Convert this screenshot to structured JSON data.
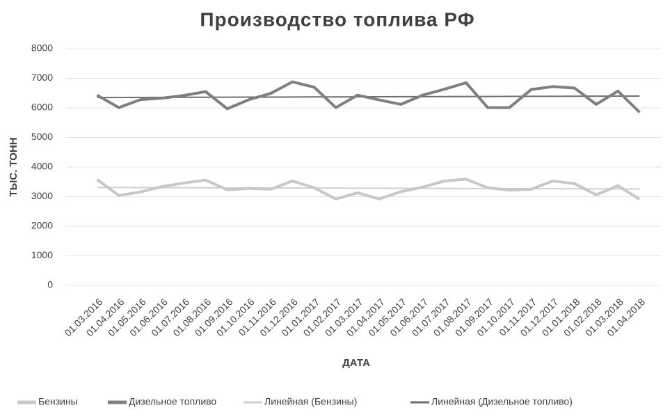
{
  "chart_data": {
    "type": "line",
    "title": "Производство топлива РФ",
    "x_label": "ДАТА",
    "y_label": "ТЫС. ТОНН",
    "categories": [
      "01.03.2016",
      "01.04.2016",
      "01.05.2016",
      "01.06.2016",
      "01.07.2016",
      "01.08.2016",
      "01.09.2016",
      "01.10.2016",
      "01.11.2016",
      "01.12.2016",
      "01.01.2017",
      "01.02.2017",
      "01.03.2017",
      "01.04.2017",
      "01.05.2017",
      "01.06.2017",
      "01.07.2017",
      "01.08.2017",
      "01.09.2017",
      "01.10.2017",
      "01.11.2017",
      "01.12.2017",
      "01.01.2018",
      "01.02.2018",
      "01.03.2018",
      "01.04.2018"
    ],
    "series": [
      {
        "name": "Бензины",
        "color": "#c8c8c8",
        "width": 4,
        "values": [
          3580,
          3040,
          3160,
          3340,
          3460,
          3560,
          3230,
          3280,
          3250,
          3530,
          3300,
          2920,
          3130,
          2920,
          3170,
          3320,
          3530,
          3590,
          3300,
          3220,
          3250,
          3530,
          3440,
          3060,
          3370,
          2910
        ]
      },
      {
        "name": "Дизельное топливо",
        "color": "#7f7f7f",
        "width": 4,
        "values": [
          6430,
          6010,
          6280,
          6330,
          6420,
          6550,
          5970,
          6280,
          6490,
          6880,
          6700,
          6010,
          6430,
          6270,
          6120,
          6430,
          6630,
          6850,
          6010,
          6010,
          6620,
          6720,
          6670,
          6120,
          6570,
          5850
        ]
      },
      {
        "name": "Линейная (Бензины)",
        "color": "#d0d0d0",
        "width": 2,
        "values": [
          3310,
          3308,
          3306,
          3304,
          3302,
          3300,
          3298,
          3296,
          3294,
          3292,
          3290,
          3288,
          3286,
          3284,
          3282,
          3280,
          3278,
          3276,
          3274,
          3272,
          3270,
          3268,
          3266,
          3264,
          3262,
          3260
        ]
      },
      {
        "name": "Линейная (Дизельное топливо)",
        "color": "#6e6e6e",
        "width": 2,
        "values": [
          6350,
          6352,
          6354,
          6356,
          6358,
          6360,
          6362,
          6364,
          6366,
          6368,
          6370,
          6372,
          6374,
          6376,
          6378,
          6380,
          6382,
          6384,
          6386,
          6388,
          6390,
          6392,
          6394,
          6396,
          6398,
          6400
        ]
      }
    ],
    "ylim": [
      0,
      8000
    ],
    "yticks": [
      0,
      1000,
      2000,
      3000,
      4000,
      5000,
      6000,
      7000,
      8000
    ],
    "grid": true,
    "legend": "bottom"
  }
}
